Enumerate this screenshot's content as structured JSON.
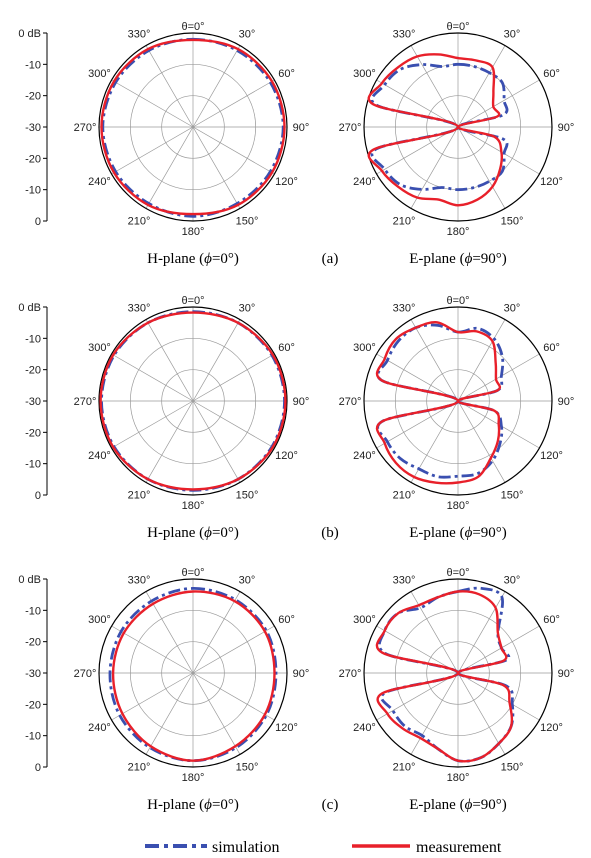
{
  "colors": {
    "simulation": "#3a4fb0",
    "measurement": "#e8202a",
    "grid": "#9a9a9a",
    "axis": "#000000"
  },
  "legend": {
    "simulation": "simulation",
    "measurement": "measurement"
  },
  "scale_labels": [
    "0 dB",
    "-10",
    "-20",
    "-30",
    "-20",
    "-10",
    "0"
  ],
  "angle_labels": [
    "θ=0°",
    "30°",
    "60°",
    "90°",
    "120°",
    "150°",
    "180°",
    "210°",
    "240°",
    "270°",
    "300°",
    "330°"
  ],
  "chart_data": [
    {
      "type": "polar",
      "panel": "(a)",
      "h_caption": {
        "pre": "H-plane (",
        "phi": "ϕ",
        "post": "=0°)"
      },
      "e_caption": {
        "pre": "E-plane (",
        "phi": "ϕ",
        "post": "=90°)"
      },
      "rlim": [
        -30,
        0
      ],
      "h_plane": {
        "theta": [
          0,
          30,
          60,
          90,
          120,
          150,
          180,
          210,
          240,
          270,
          300,
          330
        ],
        "simulation": [
          -2,
          -1.8,
          -1.5,
          -1.2,
          -1.5,
          -1.8,
          -1.5,
          -1.8,
          -1.5,
          -1.2,
          -1.5,
          -1.8
        ],
        "measurement": [
          -2.2,
          -1.3,
          -0.9,
          -0.8,
          -0.9,
          -1.3,
          -2.2,
          -1.3,
          -0.9,
          -0.8,
          -0.9,
          -1.3
        ]
      },
      "e_plane": {
        "theta": [
          0,
          15,
          30,
          45,
          60,
          75,
          90,
          105,
          120,
          135,
          150,
          165,
          180,
          195,
          210,
          225,
          240,
          255,
          270,
          285,
          300,
          315,
          330,
          345
        ],
        "simulation": [
          -10,
          -10,
          -10,
          -10,
          -13,
          -15,
          -30,
          -15,
          -13,
          -10,
          -10,
          -10,
          -10,
          -10,
          -7,
          -4,
          -3,
          -3,
          -30,
          -3,
          -3,
          -4,
          -7,
          -10
        ],
        "measurement": [
          -8,
          -8,
          -8,
          -14,
          -17,
          -17,
          -30,
          -18,
          -14,
          -11,
          -8,
          -6,
          -5,
          -6,
          -4,
          -3,
          -2,
          -2,
          -30,
          -2,
          -2,
          -3,
          -4,
          -6
        ]
      }
    },
    {
      "type": "polar",
      "panel": "(b)",
      "h_caption": {
        "pre": "H-plane (",
        "phi": "ϕ",
        "post": "=0°)"
      },
      "e_caption": {
        "pre": "E-plane (",
        "phi": "ϕ",
        "post": "=90°)"
      },
      "rlim": [
        -30,
        0
      ],
      "h_plane": {
        "theta": [
          0,
          30,
          60,
          90,
          120,
          150,
          180,
          210,
          240,
          270,
          300,
          330
        ],
        "simulation": [
          -1.5,
          -1.2,
          -0.9,
          -0.8,
          -0.9,
          -1.2,
          -1.5,
          -1.2,
          -0.9,
          -0.8,
          -0.9,
          -1.2
        ],
        "measurement": [
          -1.8,
          -1.2,
          -0.6,
          -0.5,
          -0.6,
          -1.2,
          -1.8,
          -1.2,
          -0.6,
          -0.5,
          -0.6,
          -1.2
        ]
      },
      "e_plane": {
        "theta": [
          0,
          15,
          30,
          45,
          60,
          75,
          90,
          105,
          120,
          135,
          150,
          165,
          180,
          195,
          210,
          225,
          240,
          255,
          270,
          285,
          300,
          315,
          330,
          345
        ],
        "simulation": [
          -8,
          -6,
          -7,
          -10,
          -14,
          -17,
          -30,
          -18,
          -14,
          -11,
          -8,
          -6,
          -6,
          -5,
          -5,
          -4,
          -4,
          -5,
          -30,
          -5,
          -4,
          -3,
          -3,
          -5
        ],
        "measurement": [
          -8,
          -7,
          -8,
          -13,
          -16,
          -17,
          -30,
          -18,
          -15,
          -12,
          -9,
          -5,
          -4,
          -3,
          -2,
          -2,
          -3,
          -5,
          -30,
          -5,
          -3,
          -2,
          -3,
          -4
        ]
      }
    },
    {
      "type": "polar",
      "panel": "(c)",
      "h_caption": {
        "pre": "H-plane (",
        "phi": "ϕ",
        "post": "=0°)"
      },
      "e_caption": {
        "pre": "E-plane (",
        "phi": "ϕ",
        "post": "=90°)"
      },
      "rlim": [
        -30,
        0
      ],
      "h_plane": {
        "theta": [
          0,
          30,
          60,
          90,
          120,
          150,
          180,
          210,
          240,
          270,
          300,
          330
        ],
        "simulation": [
          -3,
          -3,
          -3,
          -3.5,
          -3,
          -2.5,
          -2,
          -2.5,
          -3,
          -3.5,
          -3.5,
          -3.5
        ],
        "measurement": [
          -4,
          -3.5,
          -3.5,
          -4,
          -3.5,
          -3,
          -2,
          -3,
          -4,
          -4.5,
          -4.5,
          -4.5
        ]
      },
      "e_plane": {
        "theta": [
          0,
          15,
          30,
          45,
          60,
          75,
          90,
          105,
          120,
          135,
          150,
          165,
          180,
          195,
          210,
          225,
          240,
          255,
          270,
          285,
          300,
          315,
          330,
          345
        ],
        "simulation": [
          -4,
          -2,
          -2,
          -12,
          -14,
          -14,
          -30,
          -14,
          -10,
          -6,
          -4,
          -2,
          -2,
          -5,
          -7,
          -6,
          -6,
          -6,
          -30,
          -6,
          -3,
          -3,
          -6,
          -5
        ],
        "measurement": [
          -4,
          -4,
          -6,
          -12,
          -14,
          -15,
          -30,
          -15,
          -11,
          -6,
          -4,
          -2,
          -2,
          -5,
          -6,
          -5,
          -4,
          -5,
          -30,
          -5,
          -3,
          -3,
          -5,
          -5
        ]
      }
    }
  ]
}
